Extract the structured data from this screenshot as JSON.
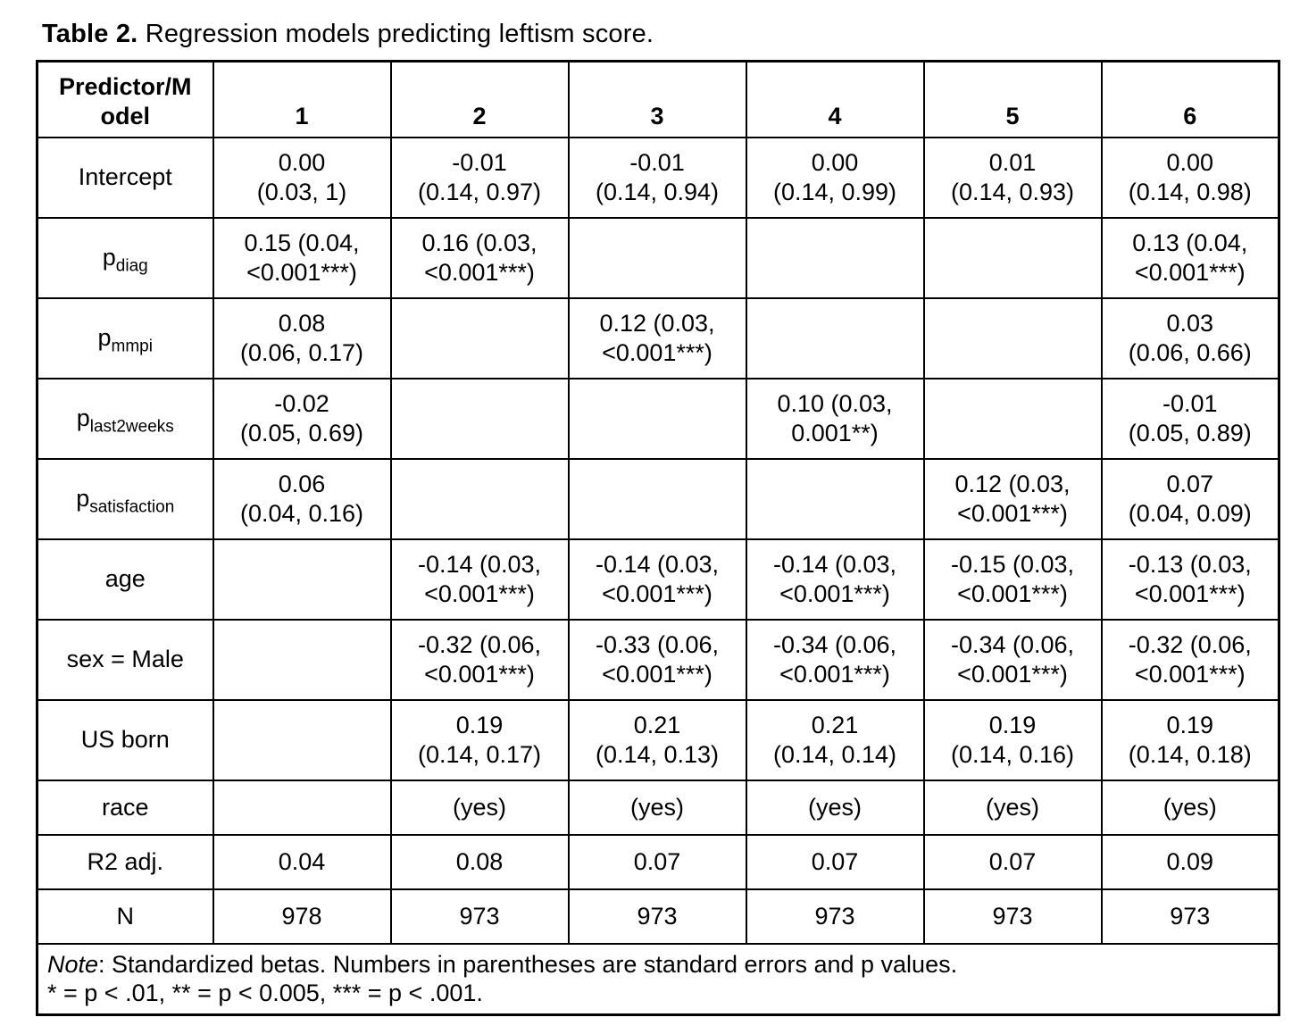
{
  "page": {
    "title_bold": "Table 2.",
    "title_rest": " Regression models predicting leftism score."
  },
  "table": {
    "header": {
      "label_lines": [
        "Predictor/M",
        "odel"
      ],
      "models": [
        "1",
        "2",
        "3",
        "4",
        "5",
        "6"
      ]
    },
    "rows": [
      {
        "label": "Intercept",
        "sub": "",
        "size": "tall",
        "cells": [
          [
            "0.00",
            "(0.03, 1)"
          ],
          [
            "-0.01",
            "(0.14, 0.97)"
          ],
          [
            "-0.01",
            "(0.14, 0.94)"
          ],
          [
            "0.00",
            "(0.14, 0.99)"
          ],
          [
            "0.01",
            "(0.14, 0.93)"
          ],
          [
            "0.00",
            "(0.14, 0.98)"
          ]
        ]
      },
      {
        "label": "p",
        "sub": "diag",
        "size": "tall",
        "cells": [
          [
            "0.15 (0.04,",
            "<0.001***)"
          ],
          [
            "0.16 (0.03,",
            "<0.001***)"
          ],
          [],
          [],
          [],
          [
            "0.13 (0.04,",
            "<0.001***)"
          ]
        ]
      },
      {
        "label": "p",
        "sub": "mmpi",
        "size": "tall",
        "cells": [
          [
            "0.08",
            "(0.06, 0.17)"
          ],
          [],
          [
            "0.12 (0.03,",
            "<0.001***)"
          ],
          [],
          [],
          [
            "0.03",
            "(0.06, 0.66)"
          ]
        ]
      },
      {
        "label": "p",
        "sub": "last2weeks",
        "size": "tall",
        "cells": [
          [
            "-0.02",
            "(0.05, 0.69)"
          ],
          [],
          [],
          [
            "0.10 (0.03,",
            "0.001**)"
          ],
          [],
          [
            "-0.01",
            "(0.05, 0.89)"
          ]
        ]
      },
      {
        "label": "p",
        "sub": "satisfaction",
        "size": "tall",
        "cells": [
          [
            "0.06",
            "(0.04, 0.16)"
          ],
          [],
          [],
          [],
          [
            "0.12 (0.03,",
            "<0.001***)"
          ],
          [
            "0.07",
            "(0.04, 0.09)"
          ]
        ]
      },
      {
        "label": "age",
        "sub": "",
        "size": "tall",
        "cells": [
          [],
          [
            "-0.14 (0.03,",
            "<0.001***)"
          ],
          [
            "-0.14 (0.03,",
            "<0.001***)"
          ],
          [
            "-0.14 (0.03,",
            "<0.001***)"
          ],
          [
            "-0.15 (0.03,",
            "<0.001***)"
          ],
          [
            "-0.13 (0.03,",
            "<0.001***)"
          ]
        ]
      },
      {
        "label": "sex = Male",
        "sub": "",
        "size": "tall",
        "cells": [
          [],
          [
            "-0.32 (0.06,",
            "<0.001***)"
          ],
          [
            "-0.33 (0.06,",
            "<0.001***)"
          ],
          [
            "-0.34 (0.06,",
            "<0.001***)"
          ],
          [
            "-0.34 (0.06,",
            "<0.001***)"
          ],
          [
            "-0.32 (0.06,",
            "<0.001***)"
          ]
        ]
      },
      {
        "label": "US born",
        "sub": "",
        "size": "tall",
        "cells": [
          [],
          [
            "0.19",
            "(0.14, 0.17)"
          ],
          [
            "0.21",
            "(0.14, 0.13)"
          ],
          [
            "0.21",
            "(0.14, 0.14)"
          ],
          [
            "0.19",
            "(0.14, 0.16)"
          ],
          [
            "0.19",
            "(0.14, 0.18)"
          ]
        ]
      },
      {
        "label": "race",
        "sub": "",
        "size": "short",
        "cells": [
          [],
          [
            "(yes)"
          ],
          [
            "(yes)"
          ],
          [
            "(yes)"
          ],
          [
            "(yes)"
          ],
          [
            "(yes)"
          ]
        ]
      },
      {
        "label": "R2 adj.",
        "sub": "",
        "size": "short",
        "cells": [
          [
            "0.04"
          ],
          [
            "0.08"
          ],
          [
            "0.07"
          ],
          [
            "0.07"
          ],
          [
            "0.07"
          ],
          [
            "0.09"
          ]
        ]
      },
      {
        "label": "N",
        "sub": "",
        "size": "short",
        "cells": [
          [
            "978"
          ],
          [
            "973"
          ],
          [
            "973"
          ],
          [
            "973"
          ],
          [
            "973"
          ],
          [
            "973"
          ]
        ]
      }
    ],
    "note": {
      "lead_italic": "Note",
      "line1_rest": ": Standardized betas. Numbers in parentheses are standard errors and p values.",
      "line2": "* = p < .01, ** = p < 0.005, *** = p < .001."
    }
  }
}
